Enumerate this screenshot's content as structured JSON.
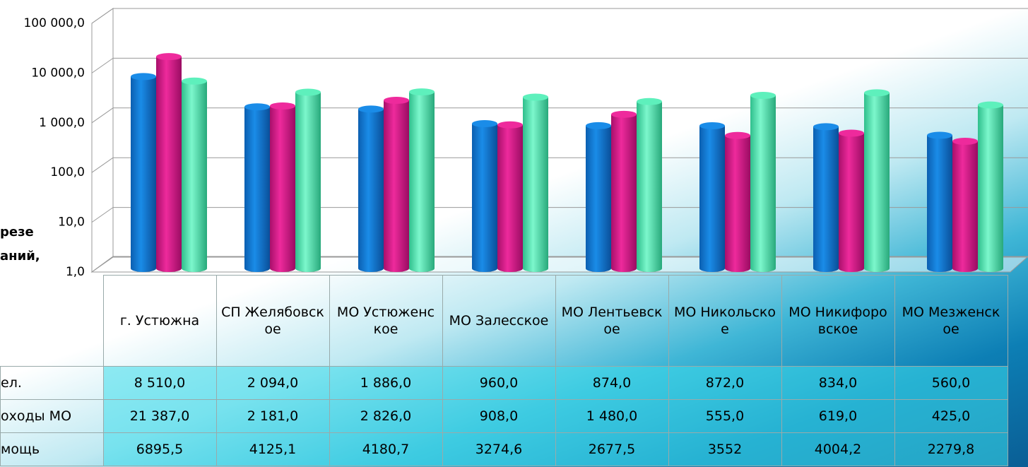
{
  "chart_data": {
    "type": "bar",
    "log_scale": true,
    "grid": true,
    "side_texts": [
      "резе",
      "аний,"
    ],
    "categories": [
      "г. Устюжна",
      "СП Желябовское",
      "МО Устюженское",
      "МО Залесское",
      "МО Лентьевское",
      "МО Никольское",
      "МО Никифоровское",
      "МО Мезженское"
    ],
    "series": [
      {
        "name": "ел.",
        "color": "#1a8ce8",
        "values": [
          8510,
          2094,
          1886,
          960,
          874,
          872,
          834,
          560
        ],
        "value_labels": [
          "8 510,0",
          "2 094,0",
          "1 886,0",
          "960,0",
          "874,0",
          "872,0",
          "834,0",
          "560,0"
        ]
      },
      {
        "name": "оходы МО",
        "color": "#ee2a9c",
        "values": [
          21387,
          2181,
          2826,
          908,
          1480,
          555,
          619,
          425
        ],
        "value_labels": [
          "21 387,0",
          "2 181,0",
          "2 826,0",
          "908,0",
          "1 480,0",
          "555,0",
          "619,0",
          "425,0"
        ]
      },
      {
        "name": "мощь",
        "color": "#5ef0bc",
        "values": [
          6895.5,
          4125.1,
          4180.7,
          3274.6,
          2677.5,
          3552,
          4004.2,
          2279.8
        ],
        "value_labels": [
          "6895,5",
          "4125,1",
          "4180,7",
          "3274,6",
          "2677,5",
          "3552",
          "4004,2",
          "2279,8"
        ]
      }
    ],
    "ylim": [
      1,
      100000
    ],
    "yticks": [
      {
        "value": 1,
        "label": "1,0"
      },
      {
        "value": 10,
        "label": "10,0"
      },
      {
        "value": 100,
        "label": "100,0"
      },
      {
        "value": 1000,
        "label": "1 000,0"
      },
      {
        "value": 10000,
        "label": "10 000,0"
      },
      {
        "value": 100000,
        "label": "100 000,0"
      }
    ]
  }
}
